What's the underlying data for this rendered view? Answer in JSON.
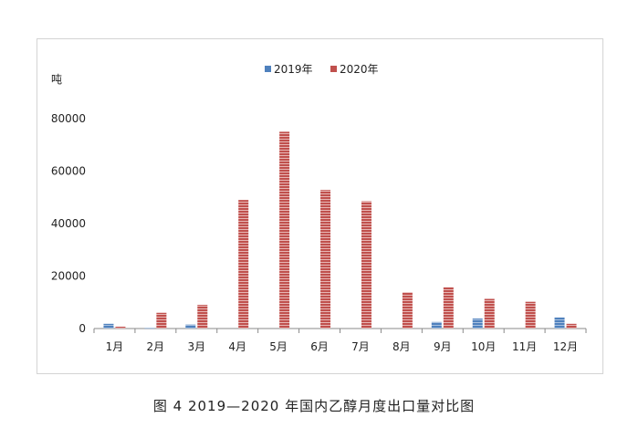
{
  "colors": {
    "y2019": "#4f81bd",
    "y2020": "#c0504d",
    "axis": "#888888",
    "text": "#222222"
  },
  "caption": "图 4 2019—2020 年国内乙醇月度出口量对比图",
  "chart_data": {
    "type": "bar",
    "title": "",
    "ylabel": "吨",
    "xlabel": "",
    "ylim": [
      0,
      80000
    ],
    "yticks": [
      "0",
      "20000",
      "40000",
      "60000",
      "80000"
    ],
    "legend_position": "top-center",
    "categories": [
      "1月",
      "2月",
      "3月",
      "4月",
      "5月",
      "6月",
      "7月",
      "8月",
      "9月",
      "10月",
      "11月",
      "12月"
    ],
    "series": [
      {
        "name": "2019年",
        "values": [
          1800,
          300,
          1500,
          0,
          0,
          0,
          0,
          0,
          2500,
          3800,
          0,
          4200
        ]
      },
      {
        "name": "2020年",
        "values": [
          700,
          6000,
          9000,
          49000,
          75000,
          52800,
          48500,
          13800,
          15700,
          11300,
          10200,
          1800
        ]
      }
    ]
  }
}
